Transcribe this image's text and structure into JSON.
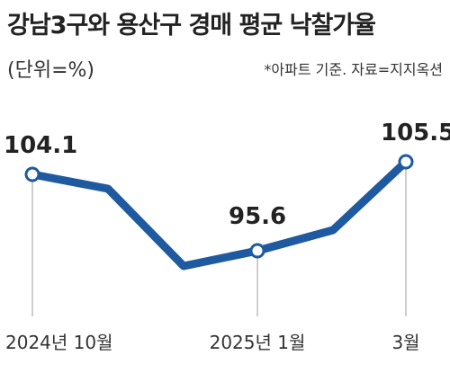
{
  "header": {
    "title": "강남3구와 용산구 경매 평균 낙찰가율",
    "unit": "(단위=%)",
    "note": "*아파트 기준. 자료=지지옥션"
  },
  "chart_data": {
    "type": "line",
    "title": "강남3구와 용산구 경매 평균 낙찰가율",
    "unit": "(단위=%)",
    "source_note": "*아파트 기준. 자료=지지옥션",
    "x": [
      "2024-10",
      "2024-11",
      "2024-12",
      "2025-01",
      "2025-02",
      "2025-03"
    ],
    "xtick_labels": [
      {
        "index": 0,
        "text": "2024년 10월"
      },
      {
        "index": 3,
        "text": "2025년 1월"
      },
      {
        "index": 5,
        "text": "3월"
      }
    ],
    "series": [
      {
        "values": [
          104.1,
          102.5,
          93.9,
          95.6,
          97.9,
          105.5
        ],
        "color": "#1f5aa0"
      }
    ],
    "labeled_points": [
      {
        "index": 0,
        "text": "104.1"
      },
      {
        "index": 3,
        "text": "95.6"
      },
      {
        "index": 5,
        "text": "105.5"
      }
    ],
    "ylim": [
      90,
      110
    ],
    "grid": false,
    "legend": "none",
    "colors": {
      "line": "#1f5aa0",
      "marker_fill": "#ffffff",
      "guide": "#bdbdbd"
    }
  }
}
